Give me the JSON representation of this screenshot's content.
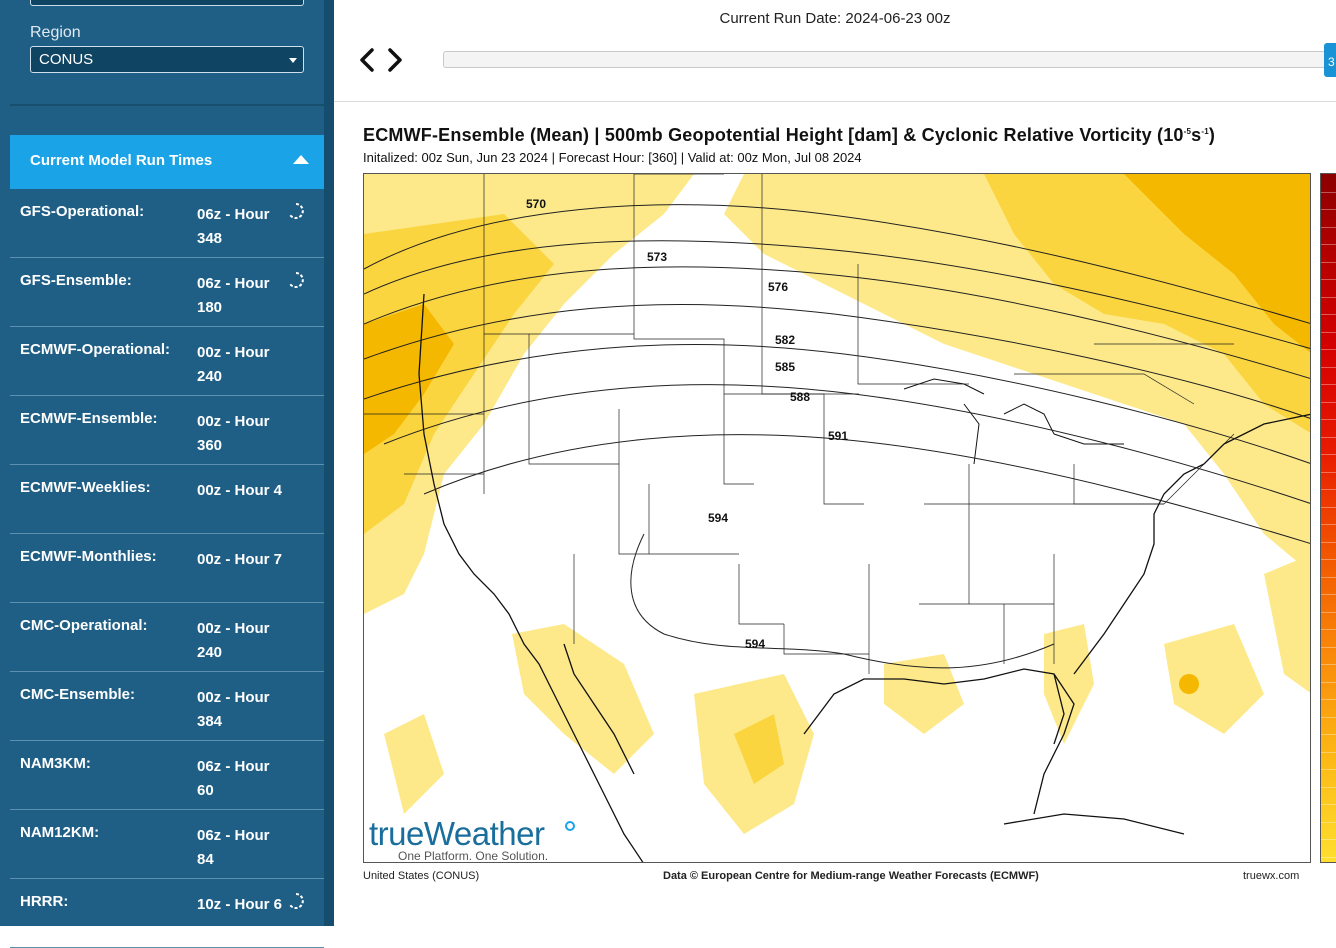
{
  "sidebar": {
    "region_label": "Region",
    "region_value": "CONUS",
    "runs_title": "Current Model Run Times",
    "runs": [
      {
        "name": "GFS-Operational:",
        "time": "06z - Hour 348",
        "loading": true
      },
      {
        "name": "GFS-Ensemble:",
        "time": "06z - Hour 180",
        "loading": true
      },
      {
        "name": "ECMWF-Operational:",
        "time": "00z - Hour 240",
        "loading": false
      },
      {
        "name": "ECMWF-Ensemble:",
        "time": "00z - Hour 360",
        "loading": false
      },
      {
        "name": "ECMWF-Weeklies:",
        "time": "00z - Hour 4",
        "loading": false
      },
      {
        "name": "ECMWF-Monthlies:",
        "time": "00z - Hour 7",
        "loading": false
      },
      {
        "name": "CMC-Operational:",
        "time": "00z - Hour 240",
        "loading": false
      },
      {
        "name": "CMC-Ensemble:",
        "time": "00z - Hour 384",
        "loading": false
      },
      {
        "name": "NAM3KM:",
        "time": "06z - Hour 60",
        "loading": false
      },
      {
        "name": "NAM12KM:",
        "time": "06z - Hour 84",
        "loading": false
      },
      {
        "name": "HRRR:",
        "time": "10z - Hour 6",
        "loading": true
      }
    ]
  },
  "header": {
    "run_date": "Current Run Date: 2024-06-23 00z",
    "timeline_handle": "3"
  },
  "map": {
    "title_main": "ECMWF-Ensemble (Mean) | 500mb Geopotential Height [dam] & Cyclonic Relative Vorticity (10",
    "title_exp1": "-5",
    "title_mid": "s",
    "title_exp2": "-1",
    "title_end": ")",
    "subtitle": "Initalized: 00z Sun, Jun 23 2024  |  Forecast Hour: [360]  |  Valid at: 00z Mon, Jul 08 2024",
    "contour_labels": [
      "570",
      "573",
      "576",
      "582",
      "585",
      "588",
      "591",
      "594",
      "594"
    ],
    "footer_left": "United States (CONUS)",
    "footer_mid": "Data © European Centre for Medium-range Weather Forecasts (ECMWF)",
    "footer_right": "truewx.com",
    "logo_brand": "trueWeather",
    "logo_tagline": "One Platform. One Solution.",
    "colors": {
      "vorticity_light": "#fde98a",
      "vorticity_mid": "#fbd53f",
      "vorticity_strong": "#f5b800",
      "contour": "#222222"
    }
  }
}
